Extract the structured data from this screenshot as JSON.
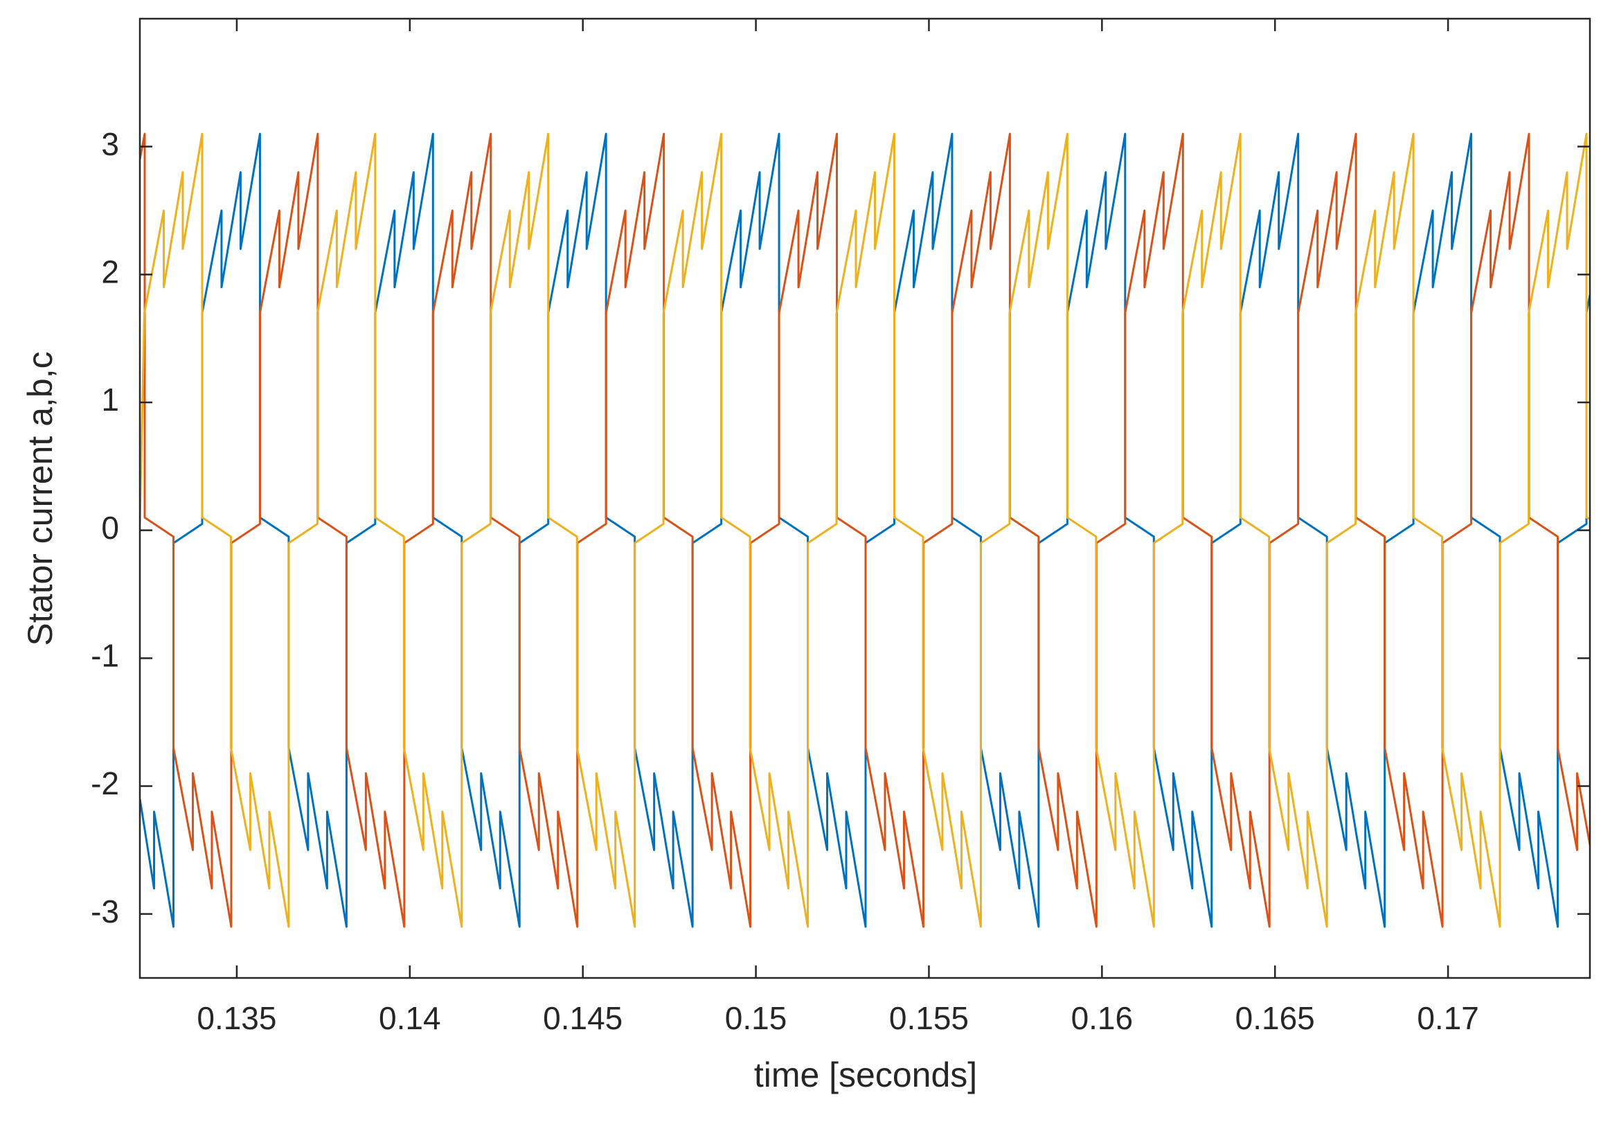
{
  "chart_data": {
    "type": "line",
    "x_label": "time [seconds]",
    "y_label": "Stator current a,b,c",
    "xlim": [
      0.1322,
      0.1741
    ],
    "ylim": [
      -3.5,
      4
    ],
    "xticks": [
      0.135,
      0.14,
      0.145,
      0.15,
      0.155,
      0.16,
      0.165,
      0.17
    ],
    "yticks": [
      -3,
      -2,
      -1,
      0,
      1,
      2,
      3
    ],
    "grid": false,
    "series": [
      {
        "color": "#0072BD",
        "x": [
          0.1322,
          0.13261,
          0.13261,
          0.13317,
          0.13317,
          0.134,
          0.134,
          0.13456,
          0.13456,
          0.13511,
          0.13511,
          0.13567,
          0.13567,
          0.1365,
          0.1365,
          0.13706,
          0.13706,
          0.13761,
          0.13761,
          0.13817,
          0.13817,
          0.139,
          0.139,
          0.13956,
          0.13956,
          0.14011,
          0.14011,
          0.14067,
          0.14067,
          0.1415,
          0.1415,
          0.14206,
          0.14206,
          0.14261,
          0.14261,
          0.14317,
          0.14317,
          0.144,
          0.144,
          0.14456,
          0.14456,
          0.14511,
          0.14511,
          0.14567,
          0.14567,
          0.1465,
          0.1465,
          0.14706,
          0.14706,
          0.14761,
          0.14761,
          0.14817,
          0.14817,
          0.149,
          0.149,
          0.14956,
          0.14956,
          0.15011,
          0.15011,
          0.15067,
          0.15067,
          0.1515,
          0.1515,
          0.15206,
          0.15206,
          0.15261,
          0.15261,
          0.15317,
          0.15317,
          0.154,
          0.154,
          0.15456,
          0.15456,
          0.15511,
          0.15511,
          0.15567,
          0.15567,
          0.1565,
          0.1565,
          0.15706,
          0.15706,
          0.15761,
          0.15761,
          0.15817,
          0.15817,
          0.159,
          0.159,
          0.15956,
          0.15956,
          0.16011,
          0.16011,
          0.16067,
          0.16067,
          0.1615,
          0.1615,
          0.16206,
          0.16206,
          0.16261,
          0.16261,
          0.16317,
          0.16317,
          0.164,
          0.164,
          0.16456,
          0.16456,
          0.16511,
          0.16511,
          0.16567,
          0.16567,
          0.1665,
          0.1665,
          0.16706,
          0.16706,
          0.16761,
          0.16761,
          0.16817,
          0.16817,
          0.169,
          0.169,
          0.16956,
          0.16956,
          0.17011,
          0.17011,
          0.17067,
          0.17067,
          0.1715,
          0.1715,
          0.17206,
          0.17206,
          0.17261,
          0.17261,
          0.17317,
          0.17317,
          0.174,
          0.174,
          0.1741
        ],
        "values": [
          -2.1,
          -2.8,
          -2.2,
          -3.1,
          -0.1,
          0.05,
          1.7,
          2.5,
          1.9,
          2.8,
          2.2,
          3.1,
          0.1,
          -0.05,
          -1.7,
          -2.5,
          -1.9,
          -2.8,
          -2.2,
          -3.1,
          -0.1,
          0.05,
          1.7,
          2.5,
          1.9,
          2.8,
          2.2,
          3.1,
          0.1,
          -0.05,
          -1.7,
          -2.5,
          -1.9,
          -2.8,
          -2.2,
          -3.1,
          -0.1,
          0.05,
          1.7,
          2.5,
          1.9,
          2.8,
          2.2,
          3.1,
          0.1,
          -0.05,
          -1.7,
          -2.5,
          -1.9,
          -2.8,
          -2.2,
          -3.1,
          -0.1,
          0.05,
          1.7,
          2.5,
          1.9,
          2.8,
          2.2,
          3.1,
          0.1,
          -0.05,
          -1.7,
          -2.5,
          -1.9,
          -2.8,
          -2.2,
          -3.1,
          -0.1,
          0.05,
          1.7,
          2.5,
          1.9,
          2.8,
          2.2,
          3.1,
          0.1,
          -0.05,
          -1.7,
          -2.5,
          -1.9,
          -2.8,
          -2.2,
          -3.1,
          -0.1,
          0.05,
          1.7,
          2.5,
          1.9,
          2.8,
          2.2,
          3.1,
          0.1,
          -0.05,
          -1.7,
          -2.5,
          -1.9,
          -2.8,
          -2.2,
          -3.1,
          -0.1,
          0.05,
          1.7,
          2.5,
          1.9,
          2.8,
          2.2,
          3.1,
          0.1,
          -0.05,
          -1.7,
          -2.5,
          -1.9,
          -2.8,
          -2.2,
          -3.1,
          -0.1,
          0.05,
          1.7,
          2.5,
          1.9,
          2.8,
          2.2,
          3.1,
          0.1,
          -0.05,
          -1.7,
          -2.5,
          -1.9,
          -2.8,
          -2.2,
          -3.1,
          -0.1,
          0.05,
          1.7,
          1.84
        ]
      },
      {
        "color": "#D95319",
        "x": [
          0.1322,
          0.13234,
          0.13234,
          0.13317,
          0.13317,
          0.13373,
          0.13373,
          0.13428,
          0.13428,
          0.13484,
          0.13484,
          0.13567,
          0.13567,
          0.13623,
          0.13623,
          0.13678,
          0.13678,
          0.13734,
          0.13734,
          0.13817,
          0.13817,
          0.13873,
          0.13873,
          0.13928,
          0.13928,
          0.13984,
          0.13984,
          0.14067,
          0.14067,
          0.14123,
          0.14123,
          0.14178,
          0.14178,
          0.14234,
          0.14234,
          0.14317,
          0.14317,
          0.14373,
          0.14373,
          0.14428,
          0.14428,
          0.14484,
          0.14484,
          0.14567,
          0.14567,
          0.14623,
          0.14623,
          0.14678,
          0.14678,
          0.14734,
          0.14734,
          0.14817,
          0.14817,
          0.14873,
          0.14873,
          0.14928,
          0.14928,
          0.14984,
          0.14984,
          0.15067,
          0.15067,
          0.15123,
          0.15123,
          0.15178,
          0.15178,
          0.15234,
          0.15234,
          0.15317,
          0.15317,
          0.15373,
          0.15373,
          0.15428,
          0.15428,
          0.15484,
          0.15484,
          0.15567,
          0.15567,
          0.15623,
          0.15623,
          0.15678,
          0.15678,
          0.15734,
          0.15734,
          0.15817,
          0.15817,
          0.15873,
          0.15873,
          0.15928,
          0.15928,
          0.15984,
          0.15984,
          0.16067,
          0.16067,
          0.16123,
          0.16123,
          0.16178,
          0.16178,
          0.16234,
          0.16234,
          0.16317,
          0.16317,
          0.16373,
          0.16373,
          0.16428,
          0.16428,
          0.16484,
          0.16484,
          0.16567,
          0.16567,
          0.16623,
          0.16623,
          0.16678,
          0.16678,
          0.16734,
          0.16734,
          0.16817,
          0.16817,
          0.16873,
          0.16873,
          0.16928,
          0.16928,
          0.16984,
          0.16984,
          0.17067,
          0.17067,
          0.17123,
          0.17123,
          0.17178,
          0.17178,
          0.17234,
          0.17234,
          0.17317,
          0.17317,
          0.17373,
          0.17373,
          0.1741
        ],
        "values": [
          2.9,
          3.1,
          0.1,
          -0.05,
          -1.7,
          -2.5,
          -1.9,
          -2.8,
          -2.2,
          -3.1,
          -0.1,
          0.05,
          1.7,
          2.5,
          1.9,
          2.8,
          2.2,
          3.1,
          0.1,
          -0.05,
          -1.7,
          -2.5,
          -1.9,
          -2.8,
          -2.2,
          -3.1,
          -0.1,
          0.05,
          1.7,
          2.5,
          1.9,
          2.8,
          2.2,
          3.1,
          0.1,
          -0.05,
          -1.7,
          -2.5,
          -1.9,
          -2.8,
          -2.2,
          -3.1,
          -0.1,
          0.05,
          1.7,
          2.5,
          1.9,
          2.8,
          2.2,
          3.1,
          0.1,
          -0.05,
          -1.7,
          -2.5,
          -1.9,
          -2.8,
          -2.2,
          -3.1,
          -0.1,
          0.05,
          1.7,
          2.5,
          1.9,
          2.8,
          2.2,
          3.1,
          0.1,
          -0.05,
          -1.7,
          -2.5,
          -1.9,
          -2.8,
          -2.2,
          -3.1,
          -0.1,
          0.05,
          1.7,
          2.5,
          1.9,
          2.8,
          2.2,
          3.1,
          0.1,
          -0.05,
          -1.7,
          -2.5,
          -1.9,
          -2.8,
          -2.2,
          -3.1,
          -0.1,
          0.05,
          1.7,
          2.5,
          1.9,
          2.8,
          2.2,
          3.1,
          0.1,
          -0.05,
          -1.7,
          -2.5,
          -1.9,
          -2.8,
          -2.2,
          -3.1,
          -0.1,
          0.05,
          1.7,
          2.5,
          1.9,
          2.8,
          2.2,
          3.1,
          0.1,
          -0.05,
          -1.7,
          -2.5,
          -1.9,
          -2.8,
          -2.2,
          -3.1,
          -0.1,
          0.05,
          1.7,
          2.5,
          1.9,
          2.8,
          2.2,
          3.1,
          0.1,
          -0.05,
          -1.7,
          -2.5,
          -1.9,
          -2.46
        ]
      },
      {
        "color": "#EDB120",
        "x": [
          0.1322,
          0.13233,
          0.13289,
          0.13289,
          0.13344,
          0.13344,
          0.134,
          0.134,
          0.13483,
          0.13483,
          0.13539,
          0.13539,
          0.13594,
          0.13594,
          0.1365,
          0.1365,
          0.13733,
          0.13733,
          0.13789,
          0.13789,
          0.13844,
          0.13844,
          0.139,
          0.139,
          0.13983,
          0.13983,
          0.14039,
          0.14039,
          0.14094,
          0.14094,
          0.1415,
          0.1415,
          0.14233,
          0.14233,
          0.14289,
          0.14289,
          0.14344,
          0.14344,
          0.144,
          0.144,
          0.14483,
          0.14483,
          0.14539,
          0.14539,
          0.14594,
          0.14594,
          0.1465,
          0.1465,
          0.14733,
          0.14733,
          0.14789,
          0.14789,
          0.14844,
          0.14844,
          0.149,
          0.149,
          0.14983,
          0.14983,
          0.15039,
          0.15039,
          0.15094,
          0.15094,
          0.1515,
          0.1515,
          0.15233,
          0.15233,
          0.15289,
          0.15289,
          0.15344,
          0.15344,
          0.154,
          0.154,
          0.15483,
          0.15483,
          0.15539,
          0.15539,
          0.15594,
          0.15594,
          0.1565,
          0.1565,
          0.15733,
          0.15733,
          0.15789,
          0.15789,
          0.15844,
          0.15844,
          0.159,
          0.159,
          0.15983,
          0.15983,
          0.16039,
          0.16039,
          0.16094,
          0.16094,
          0.1615,
          0.1615,
          0.16233,
          0.16233,
          0.16289,
          0.16289,
          0.16344,
          0.16344,
          0.164,
          0.164,
          0.16483,
          0.16483,
          0.16539,
          0.16539,
          0.16594,
          0.16594,
          0.1665,
          0.1665,
          0.16733,
          0.16733,
          0.16789,
          0.16789,
          0.16844,
          0.16844,
          0.169,
          0.169,
          0.16983,
          0.16983,
          0.17039,
          0.17039,
          0.17094,
          0.17094,
          0.1715,
          0.1715,
          0.17233,
          0.17233,
          0.17289,
          0.17289,
          0.17344,
          0.17344,
          0.174,
          0.174,
          0.1741
        ],
        "values": [
          0.05,
          1.7,
          2.5,
          1.9,
          2.8,
          2.2,
          3.1,
          0.1,
          -0.05,
          -1.7,
          -2.5,
          -1.9,
          -2.8,
          -2.2,
          -3.1,
          -0.1,
          0.05,
          1.7,
          2.5,
          1.9,
          2.8,
          2.2,
          3.1,
          0.1,
          -0.05,
          -1.7,
          -2.5,
          -1.9,
          -2.8,
          -2.2,
          -3.1,
          -0.1,
          0.05,
          1.7,
          2.5,
          1.9,
          2.8,
          2.2,
          3.1,
          0.1,
          -0.05,
          -1.7,
          -2.5,
          -1.9,
          -2.8,
          -2.2,
          -3.1,
          -0.1,
          0.05,
          1.7,
          2.5,
          1.9,
          2.8,
          2.2,
          3.1,
          0.1,
          -0.05,
          -1.7,
          -2.5,
          -1.9,
          -2.8,
          -2.2,
          -3.1,
          -0.1,
          0.05,
          1.7,
          2.5,
          1.9,
          2.8,
          2.2,
          3.1,
          0.1,
          -0.05,
          -1.7,
          -2.5,
          -1.9,
          -2.8,
          -2.2,
          -3.1,
          -0.1,
          0.05,
          1.7,
          2.5,
          1.9,
          2.8,
          2.2,
          3.1,
          0.1,
          -0.05,
          -1.7,
          -2.5,
          -1.9,
          -2.8,
          -2.2,
          -3.1,
          -0.1,
          0.05,
          1.7,
          2.5,
          1.9,
          2.8,
          2.2,
          3.1,
          0.1,
          -0.05,
          -1.7,
          -2.5,
          -1.9,
          -2.8,
          -2.2,
          -3.1,
          -0.1,
          0.05,
          1.7,
          2.5,
          1.9,
          2.8,
          2.2,
          3.1,
          0.1,
          -0.05,
          -1.7,
          -2.5,
          -1.9,
          -2.8,
          -2.2,
          -3.1,
          -0.1,
          0.05,
          1.7,
          2.5,
          1.9,
          2.8,
          2.2,
          3.1,
          0.1,
          0.09
        ]
      }
    ]
  }
}
